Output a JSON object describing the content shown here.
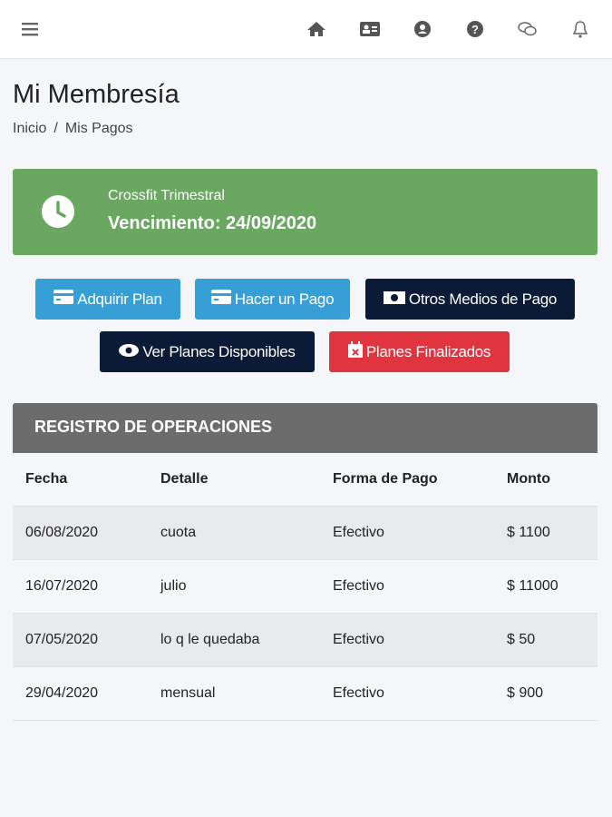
{
  "header": {
    "icons": [
      "menu-icon",
      "home-icon",
      "id-card-icon",
      "user-icon",
      "question-icon",
      "comments-icon",
      "bell-icon"
    ]
  },
  "page": {
    "title": "Mi Membresía",
    "breadcrumb": [
      "Inicio",
      "Mis Pagos"
    ]
  },
  "membership": {
    "plan": "Crossfit Trimestral",
    "expiry": "Vencimiento: 24/09/2020",
    "color": "#6aa760"
  },
  "buttons": [
    {
      "label": "Adquirir Plan",
      "icon": "credit-card-icon",
      "color": "#36a0d6"
    },
    {
      "label": "Hacer un Pago",
      "icon": "credit-card-icon",
      "color": "#36a0d6"
    },
    {
      "label": "Otros Medios de Pago",
      "icon": "money-bill-icon",
      "color": "#0b1a36"
    },
    {
      "label": "Ver Planes Disponibles",
      "icon": "eye-icon",
      "color": "#0b1a36"
    },
    {
      "label": "Planes Finalizados",
      "icon": "calendar-times-icon",
      "color": "#e0343f"
    }
  ],
  "table": {
    "title": "REGISTRO DE OPERACIONES",
    "columns": [
      "Fecha",
      "Detalle",
      "Forma de Pago",
      "Monto"
    ],
    "rows": [
      [
        "06/08/2020",
        "cuota",
        "Efectivo",
        "$ 1100"
      ],
      [
        "16/07/2020",
        "julio",
        "Efectivo",
        "$ 11000"
      ],
      [
        "07/05/2020",
        "lo q le quedaba",
        "Efectivo",
        "$ 50"
      ],
      [
        "29/04/2020",
        "mensual",
        "Efectivo",
        "$ 900"
      ]
    ]
  }
}
